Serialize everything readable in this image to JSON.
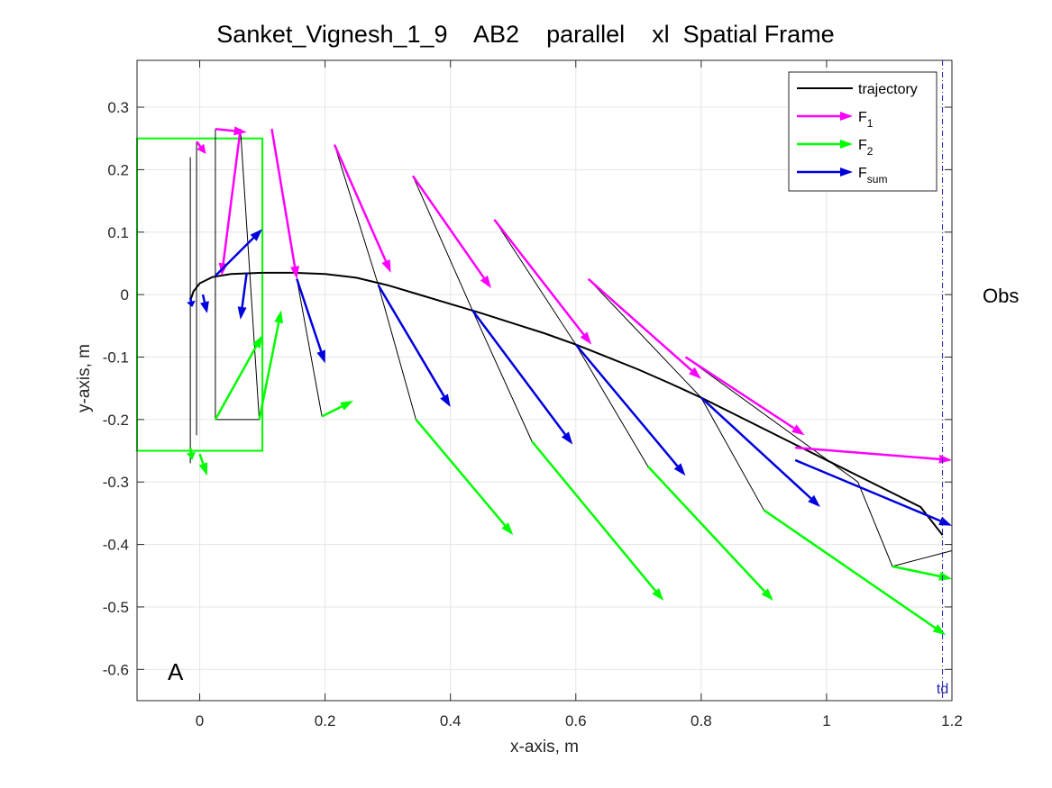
{
  "chart_data": {
    "type": "line",
    "title": "Sanket_Vignesh_1_9    AB2    parallel    xl  Spatial Frame",
    "xlabel": "x-axis, m",
    "ylabel": "y-axis, m",
    "xlim": [
      -0.1,
      1.2
    ],
    "ylim": [
      -0.65,
      0.375
    ],
    "x_ticks": [
      0,
      0.2,
      0.4,
      0.6,
      0.8,
      1,
      1.2
    ],
    "x_tick_labels": [
      "0",
      "0.2",
      "0.4",
      "0.6",
      "0.8",
      "1",
      "1.2"
    ],
    "y_ticks": [
      0.3,
      0.2,
      0.1,
      0,
      -0.1,
      -0.2,
      -0.3,
      -0.4,
      -0.5,
      -0.6
    ],
    "y_tick_labels": [
      "0.3",
      "0.2",
      "0.1",
      "0",
      "-0.1",
      "-0.2",
      "-0.3",
      "-0.4",
      "-0.5",
      "-0.6"
    ],
    "grid": true,
    "legend_position": "top-right",
    "legend": [
      {
        "label": "trajectory",
        "sub": "",
        "color": "#000000",
        "type": "line"
      },
      {
        "label": "F",
        "sub": "1",
        "color": "#ff00ff",
        "type": "arrow"
      },
      {
        "label": "F",
        "sub": "2",
        "color": "#00ff00",
        "type": "arrow"
      },
      {
        "label": "F",
        "sub": "sum",
        "color": "#0000dd",
        "type": "arrow"
      }
    ],
    "annotations": {
      "panel_letter": "A",
      "obs_label": "Obs",
      "td_label": "td",
      "td_x": 1.185
    },
    "start_box": {
      "x0": -0.1,
      "x1": 0.1,
      "y0": -0.25,
      "y1": 0.25,
      "color": "#00ff00"
    },
    "trajectory": {
      "color": "#000000",
      "x": [
        -0.015,
        -0.01,
        0.0,
        0.02,
        0.05,
        0.1,
        0.15,
        0.2,
        0.25,
        0.3,
        0.35,
        0.4,
        0.45,
        0.5,
        0.55,
        0.6,
        0.65,
        0.7,
        0.75,
        0.8,
        0.85,
        0.9,
        0.95,
        1.0,
        1.05,
        1.1,
        1.15,
        1.185
      ],
      "y": [
        -0.01,
        0.005,
        0.018,
        0.028,
        0.033,
        0.035,
        0.035,
        0.033,
        0.027,
        0.015,
        0.0,
        -0.015,
        -0.03,
        -0.046,
        -0.062,
        -0.08,
        -0.1,
        -0.12,
        -0.142,
        -0.165,
        -0.19,
        -0.215,
        -0.24,
        -0.265,
        -0.29,
        -0.315,
        -0.34,
        -0.385
      ]
    },
    "parallelograms": {
      "color": "#000000",
      "items": [
        {
          "points": [
            [
              -0.015,
              0.22
            ],
            [
              -0.015,
              -0.27
            ]
          ]
        },
        {
          "points": [
            [
              -0.005,
              0.245
            ],
            [
              -0.005,
              -0.225
            ]
          ]
        },
        {
          "points": [
            [
              0.025,
              0.265
            ],
            [
              0.025,
              -0.2
            ],
            [
              0.095,
              -0.2
            ],
            [
              0.065,
              0.265
            ]
          ]
        },
        {
          "points": [
            [
              0.115,
              0.265
            ],
            [
              0.155,
              0.025
            ],
            [
              0.195,
              -0.195
            ],
            [
              0.155,
              0.025
            ]
          ]
        },
        {
          "points": [
            [
              0.215,
              0.24
            ],
            [
              0.285,
              0.015
            ],
            [
              0.345,
              -0.2
            ],
            [
              0.285,
              0.015
            ]
          ]
        },
        {
          "points": [
            [
              0.34,
              0.19
            ],
            [
              0.435,
              -0.025
            ],
            [
              0.53,
              -0.235
            ],
            [
              0.435,
              -0.025
            ]
          ]
        },
        {
          "points": [
            [
              0.47,
              0.12
            ],
            [
              0.6,
              -0.08
            ],
            [
              0.715,
              -0.275
            ],
            [
              0.6,
              -0.08
            ]
          ]
        },
        {
          "points": [
            [
              0.62,
              0.025
            ],
            [
              0.8,
              -0.165
            ],
            [
              0.9,
              -0.345
            ],
            [
              0.8,
              -0.165
            ]
          ]
        },
        {
          "points": [
            [
              0.775,
              -0.1
            ],
            [
              1.05,
              -0.3
            ],
            [
              1.105,
              -0.435
            ],
            [
              1.2,
              -0.41
            ]
          ]
        }
      ]
    },
    "series": [
      {
        "name": "F_1",
        "color": "#ff00ff",
        "arrows": [
          [
            -0.005,
            0.245,
            0.01,
            0.225
          ],
          [
            0.025,
            0.265,
            0.075,
            0.26
          ],
          [
            0.065,
            0.265,
            0.035,
            0.03
          ],
          [
            0.115,
            0.265,
            0.155,
            0.025
          ],
          [
            0.215,
            0.24,
            0.305,
            0.035
          ],
          [
            0.34,
            0.19,
            0.465,
            0.01
          ],
          [
            0.47,
            0.12,
            0.625,
            -0.08
          ],
          [
            0.62,
            0.025,
            0.8,
            -0.135
          ],
          [
            0.775,
            -0.1,
            0.965,
            -0.225
          ],
          [
            0.95,
            -0.245,
            1.2,
            -0.265
          ]
        ]
      },
      {
        "name": "F_2",
        "color": "#00ff00",
        "arrows": [
          [
            -0.015,
            -0.245,
            -0.012,
            -0.265
          ],
          [
            0.0,
            -0.255,
            0.012,
            -0.29
          ],
          [
            0.025,
            -0.2,
            0.1,
            -0.065
          ],
          [
            0.095,
            -0.2,
            0.13,
            -0.025
          ],
          [
            0.195,
            -0.195,
            0.245,
            -0.17
          ],
          [
            0.345,
            -0.2,
            0.5,
            -0.385
          ],
          [
            0.53,
            -0.235,
            0.74,
            -0.49
          ],
          [
            0.715,
            -0.275,
            0.915,
            -0.49
          ],
          [
            0.9,
            -0.345,
            1.19,
            -0.545
          ],
          [
            1.105,
            -0.435,
            1.2,
            -0.455
          ]
        ]
      },
      {
        "name": "F_sum",
        "color": "#0000dd",
        "arrows": [
          [
            -0.015,
            -0.005,
            -0.012,
            -0.02
          ],
          [
            0.005,
            0.0,
            0.012,
            -0.03
          ],
          [
            0.025,
            0.03,
            0.1,
            0.105
          ],
          [
            0.075,
            0.035,
            0.065,
            -0.04
          ],
          [
            0.155,
            0.025,
            0.2,
            -0.11
          ],
          [
            0.285,
            0.015,
            0.4,
            -0.18
          ],
          [
            0.435,
            -0.025,
            0.595,
            -0.24
          ],
          [
            0.6,
            -0.08,
            0.775,
            -0.29
          ],
          [
            0.8,
            -0.165,
            0.99,
            -0.34
          ],
          [
            0.95,
            -0.265,
            1.2,
            -0.37
          ]
        ]
      }
    ]
  }
}
